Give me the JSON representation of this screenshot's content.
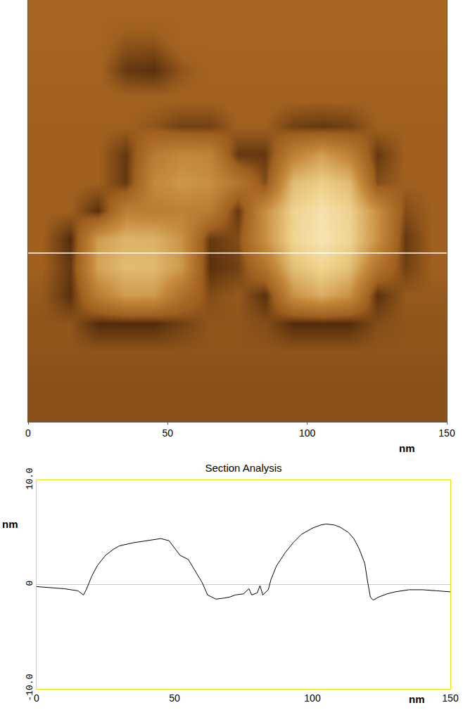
{
  "chart_data": [
    {
      "type": "heatmap",
      "x": [
        5,
        15,
        25,
        35,
        45,
        55,
        65,
        75,
        85,
        95,
        105,
        115,
        125,
        135,
        145
      ],
      "y": [
        145,
        135,
        125,
        115,
        105,
        95,
        85,
        75,
        65,
        55,
        45,
        35,
        25,
        15,
        5
      ],
      "cells": [
        [
          0.3,
          0.3,
          0.3,
          0.3,
          0.3,
          0.3,
          0.3,
          0.3,
          0.3,
          0.3,
          0.3,
          0.3,
          0.3,
          0.3,
          0.3
        ],
        [
          0.3,
          0.3,
          0.3,
          -0.3,
          -0.3,
          0.3,
          0.3,
          0.3,
          0.3,
          0.3,
          0.3,
          0.3,
          0.3,
          0.3,
          0.3
        ],
        [
          0.2,
          0.2,
          0.2,
          -1.0,
          -1.2,
          -0.3,
          0.2,
          0.2,
          0.2,
          0.2,
          0.2,
          0.2,
          0.2,
          0.2,
          0.2
        ],
        [
          0.1,
          0.1,
          0.1,
          0.1,
          0.1,
          0.1,
          0.1,
          0.1,
          0.1,
          0.1,
          0.1,
          0.1,
          0.1,
          0.1,
          0.1
        ],
        [
          0,
          0,
          0,
          0,
          -0.3,
          -0.8,
          -0.8,
          0,
          0,
          -0.8,
          -1.0,
          -0.8,
          0,
          0,
          0
        ],
        [
          0,
          0,
          0,
          -1.0,
          1.6,
          2.4,
          2.1,
          -1.0,
          -1.0,
          2.0,
          3.3,
          2.0,
          -1.0,
          0,
          0
        ],
        [
          0,
          0,
          0,
          -1.0,
          2.4,
          3.0,
          2.7,
          1.3,
          -0.5,
          4.4,
          5.1,
          4.4,
          -0.5,
          0,
          0
        ],
        [
          0,
          0,
          -1.2,
          1.9,
          1.7,
          2.0,
          1.7,
          -1.0,
          2.7,
          5.3,
          5.9,
          5.3,
          2.7,
          -0.5,
          0
        ],
        [
          0,
          -1.3,
          3.2,
          4.1,
          4.0,
          2.8,
          -1.0,
          -0.5,
          2.8,
          5.4,
          6.0,
          5.4,
          2.8,
          -1.0,
          0
        ],
        [
          0,
          -1.0,
          3.5,
          4.4,
          4.3,
          3.1,
          -1.2,
          -0.8,
          1.2,
          4.6,
          5.4,
          4.6,
          1.2,
          -0.8,
          0
        ],
        [
          -0.2,
          -1.2,
          1.8,
          3.2,
          3.1,
          0.9,
          -0.5,
          -0.2,
          -1.2,
          2.8,
          3.8,
          2.8,
          -1.2,
          -0.2,
          -0.2
        ],
        [
          -0.3,
          -0.3,
          -1.3,
          -1.3,
          -1.3,
          -0.8,
          -0.3,
          -0.3,
          -0.5,
          -1.3,
          -1.3,
          -1.3,
          -0.5,
          -0.3,
          -0.3
        ],
        [
          -0.3,
          -0.3,
          -0.3,
          -0.3,
          -0.3,
          -0.3,
          -0.3,
          -0.3,
          -0.3,
          -0.3,
          -0.3,
          -0.3,
          -0.3,
          -0.3,
          -0.3
        ],
        [
          -0.4,
          -0.4,
          -0.4,
          -0.4,
          -0.4,
          -0.4,
          -0.4,
          -0.4,
          -0.4,
          -0.4,
          -0.4,
          -0.4,
          -0.4,
          -0.4,
          -0.4
        ],
        [
          -0.4,
          -0.4,
          -0.4,
          -0.4,
          -0.4,
          -0.4,
          -0.4,
          -0.4,
          -0.4,
          -0.4,
          -0.4,
          -0.4,
          -0.4,
          -0.4,
          -0.4
        ]
      ],
      "color_range": [
        -2,
        7
      ],
      "section_y": 60,
      "xlim": [
        0,
        150
      ],
      "ylim": [
        0,
        150
      ],
      "xticks": [
        0,
        50,
        100,
        150
      ],
      "xlabel": "nm",
      "tick_labels": "x"
    },
    {
      "type": "line",
      "title": "Section Analysis",
      "x": [
        0,
        5,
        10,
        15,
        17,
        18,
        20,
        22,
        25,
        28,
        30,
        35,
        40,
        45,
        48,
        50,
        52,
        55,
        57,
        60,
        62,
        65,
        68,
        70,
        72,
        75,
        77,
        78,
        80,
        81,
        82,
        84,
        85,
        87,
        90,
        93,
        96,
        100,
        103,
        105,
        108,
        110,
        113,
        115,
        117,
        119,
        120,
        121,
        122,
        124,
        127,
        130,
        135,
        140,
        145,
        150
      ],
      "values": [
        -0.2,
        -0.3,
        -0.4,
        -0.6,
        -1.0,
        -0.5,
        0.8,
        1.8,
        2.8,
        3.4,
        3.7,
        4.0,
        4.2,
        4.4,
        4.2,
        3.5,
        2.8,
        2.4,
        1.5,
        0.2,
        -1.0,
        -1.4,
        -1.3,
        -1.2,
        -1.0,
        -0.9,
        -0.4,
        -1.0,
        -0.8,
        -0.1,
        -1.0,
        -0.5,
        0.5,
        1.8,
        3.0,
        4.0,
        4.8,
        5.4,
        5.7,
        5.8,
        5.7,
        5.5,
        5.0,
        4.4,
        3.4,
        2.0,
        0.3,
        -1.2,
        -1.5,
        -1.2,
        -0.9,
        -0.7,
        -0.5,
        -0.5,
        -0.6,
        -0.7
      ],
      "color": "#000000",
      "xlim": [
        0,
        150
      ],
      "ylim": [
        -10,
        10
      ],
      "xticks": [
        0,
        50,
        100,
        150
      ],
      "yticks": [
        {
          "value": -10,
          "label": "-10.0"
        },
        0,
        {
          "value": 10,
          "label": "10.0"
        }
      ],
      "xlabel": "nm",
      "ylabel": "nm",
      "grid": false
    }
  ]
}
